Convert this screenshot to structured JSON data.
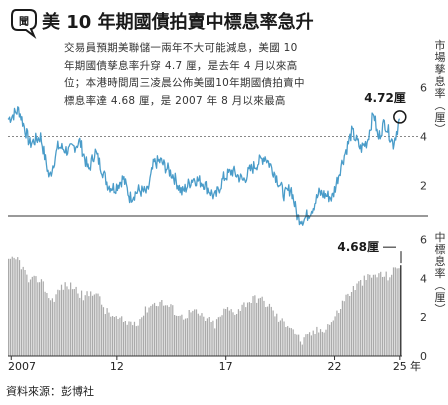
{
  "header": {
    "badge": "聞",
    "title": "美 10 年期國債拍賣中標息率急升"
  },
  "note_lines": [
    "交易員預期美聯儲一兩年不大可能減息，美國 10",
    "年期國債孳息率升穿 4.7 厘，是去年 4 月以來高",
    "位；本港時間周三凌晨公佈美國10年期國債拍賣中",
    "標息率達 4.68 厘，是 2007 年 8 月以來最高"
  ],
  "source": "資料來源：彭博社",
  "colors": {
    "top_line": "#4a9cc9",
    "bars": "#aaaaaa",
    "title_dark": "#1a1a1a",
    "grid": "#888888"
  },
  "top_panel": {
    "unit_label": "市場孳息率（厘）",
    "annotation": "4.72厘",
    "marker_icon": "circle-marker-icon"
  },
  "bottom_panel": {
    "unit_label": "中標息率（厘）",
    "annotation": "4.68厘"
  },
  "x_axis": {
    "tick_labels": [
      "2007",
      "12",
      "17",
      "22",
      "25"
    ],
    "unit": "年"
  },
  "chart_data": [
    {
      "type": "line",
      "title": "",
      "ylabel": "市場孳息率（厘）",
      "ylim": [
        1.0,
        6.8
      ],
      "yticks": [
        2,
        4,
        6
      ],
      "gridline_at": 4,
      "x": [
        2007.0,
        2007.5,
        2008.0,
        2008.5,
        2008.9,
        2009.3,
        2009.8,
        2010.3,
        2010.7,
        2011.0,
        2011.6,
        2011.9,
        2012.3,
        2012.6,
        2013.0,
        2013.4,
        2013.7,
        2014.0,
        2014.6,
        2015.0,
        2015.5,
        2016.0,
        2016.5,
        2016.9,
        2017.3,
        2017.8,
        2018.1,
        2018.8,
        2019.2,
        2019.7,
        2020.0,
        2020.3,
        2020.6,
        2021.0,
        2021.3,
        2021.9,
        2022.3,
        2022.8,
        2023.2,
        2023.5,
        2023.8,
        2024.0,
        2024.3,
        2024.7,
        2025.0
      ],
      "series": [
        {
          "name": "",
          "values": [
            4.7,
            5.1,
            3.7,
            4.0,
            2.3,
            3.6,
            3.4,
            3.8,
            2.6,
            3.4,
            2.0,
            1.9,
            2.3,
            1.5,
            1.8,
            1.7,
            2.9,
            3.0,
            2.4,
            1.7,
            2.3,
            2.1,
            1.5,
            2.3,
            2.6,
            2.2,
            2.6,
            3.2,
            2.6,
            1.6,
            1.9,
            0.7,
            0.6,
            1.1,
            1.7,
            1.5,
            2.8,
            4.2,
            3.5,
            3.8,
            5.0,
            3.9,
            4.6,
            3.7,
            4.72
          ]
        }
      ]
    },
    {
      "type": "bar",
      "title": "",
      "ylabel": "中標息率（厘）",
      "ylim": [
        0,
        6.8
      ],
      "yticks": [
        0,
        2,
        4,
        6
      ],
      "x_range": [
        2007.0,
        2025.1
      ],
      "anchor_x": [
        2007.0,
        2007.5,
        2008.0,
        2008.5,
        2009.0,
        2009.5,
        2010.0,
        2010.5,
        2011.0,
        2011.5,
        2012.0,
        2012.5,
        2013.0,
        2013.5,
        2014.0,
        2014.5,
        2015.0,
        2015.5,
        2016.0,
        2016.5,
        2017.0,
        2017.5,
        2018.0,
        2018.5,
        2019.0,
        2019.5,
        2020.0,
        2020.5,
        2021.0,
        2021.5,
        2022.0,
        2022.5,
        2023.0,
        2023.5,
        2024.0,
        2024.5,
        2025.0
      ],
      "anchor_values": [
        4.8,
        5.0,
        3.8,
        4.0,
        2.8,
        3.6,
        3.6,
        3.0,
        3.4,
        2.3,
        1.9,
        1.7,
        1.8,
        2.6,
        2.8,
        2.5,
        2.0,
        2.3,
        2.0,
        1.6,
        2.4,
        2.3,
        2.8,
        3.0,
        2.6,
        1.8,
        1.6,
        0.7,
        1.2,
        1.4,
        1.9,
        3.0,
        3.6,
        4.0,
        4.2,
        4.1,
        4.68
      ],
      "bar_count": 216
    }
  ]
}
